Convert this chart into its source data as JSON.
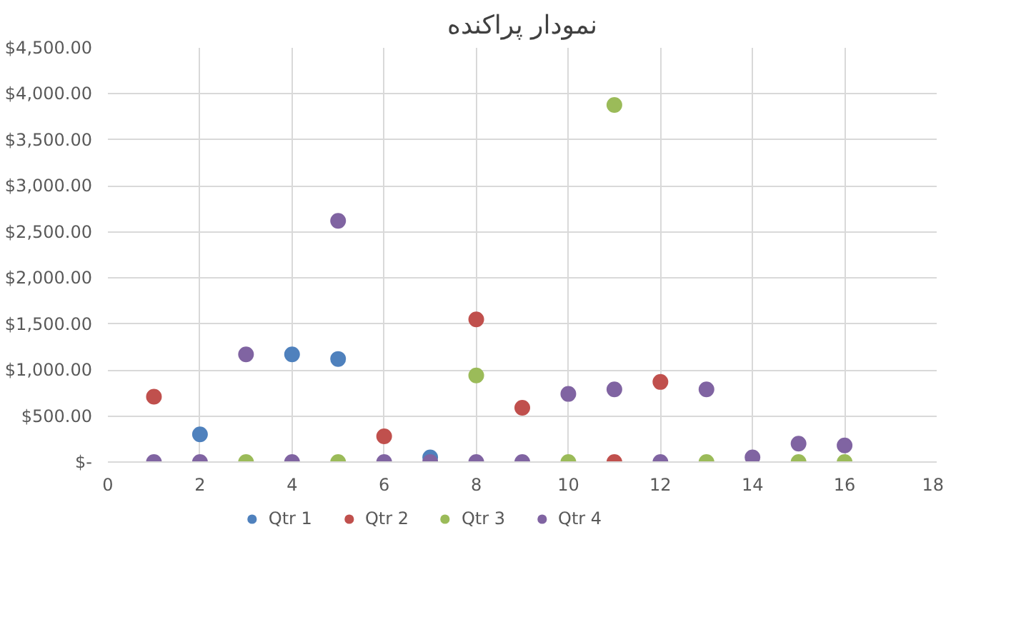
{
  "chart_data": {
    "type": "scatter",
    "title": "نمودار پراکنده",
    "x": [
      1,
      2,
      3,
      4,
      5,
      6,
      7,
      8,
      9,
      10,
      11,
      12,
      13,
      14,
      15,
      16
    ],
    "series": [
      {
        "name": "Qtr 1",
        "color": "#4f81bd",
        "values": [
          null,
          300,
          null,
          1170,
          1120,
          null,
          50,
          null,
          null,
          null,
          null,
          null,
          null,
          null,
          null,
          null
        ]
      },
      {
        "name": "Qtr 2",
        "color": "#c0504d",
        "values": [
          710,
          null,
          null,
          null,
          null,
          280,
          null,
          1550,
          590,
          null,
          0,
          870,
          null,
          null,
          null,
          null
        ]
      },
      {
        "name": "Qtr 3",
        "color": "#9bbb59",
        "values": [
          null,
          null,
          0,
          null,
          0,
          null,
          null,
          940,
          null,
          0,
          3880,
          null,
          0,
          null,
          0,
          0
        ]
      },
      {
        "name": "Qtr 4",
        "color": "#8064a2",
        "values": [
          0,
          0,
          1170,
          0,
          2620,
          0,
          0,
          0,
          0,
          740,
          790,
          0,
          790,
          50,
          200,
          180
        ]
      }
    ],
    "xlim": [
      0,
      18
    ],
    "xticks": [
      0,
      2,
      4,
      6,
      8,
      10,
      12,
      14,
      16,
      18
    ],
    "ylim": [
      0,
      4500
    ],
    "yticks": [
      {
        "value": 0,
        "label": "$-"
      },
      {
        "value": 500,
        "label": "$500.00"
      },
      {
        "value": 1000,
        "label": "$1,000.00"
      },
      {
        "value": 1500,
        "label": "$1,500.00"
      },
      {
        "value": 2000,
        "label": "$2,000.00"
      },
      {
        "value": 2500,
        "label": "$2,500.00"
      },
      {
        "value": 3000,
        "label": "$3,000.00"
      },
      {
        "value": 3500,
        "label": "$3,500.00"
      },
      {
        "value": 4000,
        "label": "$4,000.00"
      },
      {
        "value": 4500,
        "label": "$4,500.00"
      }
    ],
    "grid": true,
    "legend": "bottom",
    "marker": "circle"
  }
}
